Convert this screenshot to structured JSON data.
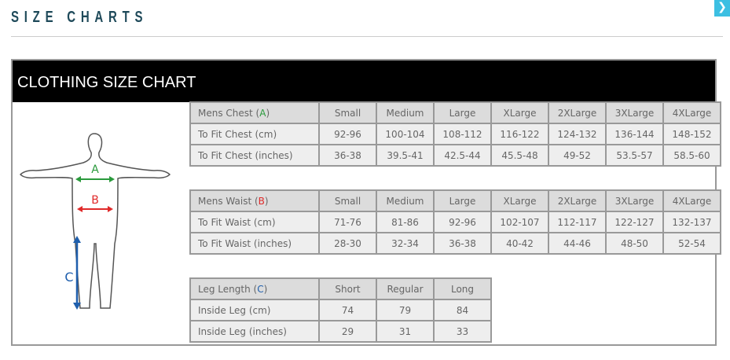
{
  "page": {
    "title": "SIZE CHARTS",
    "close_icon": "chevron-right-icon"
  },
  "chart": {
    "heading": "CLOTHING SIZE CHART",
    "figure": {
      "labels": {
        "A": "A",
        "B": "B",
        "C": "C"
      },
      "colors": {
        "A": "#2a9a3c",
        "B": "#e02a2a",
        "C": "#1f5fad"
      }
    },
    "tables": [
      {
        "header_label": "Mens Chest",
        "marker": "A",
        "columns": [
          "Small",
          "Medium",
          "Large",
          "XLarge",
          "2XLarge",
          "3XLarge",
          "4XLarge"
        ],
        "rows": [
          {
            "label": "To Fit Chest (cm)",
            "values": [
              "92-96",
              "100-104",
              "108-112",
              "116-122",
              "124-132",
              "136-144",
              "148-152"
            ]
          },
          {
            "label": "To Fit Chest (inches)",
            "values": [
              "36-38",
              "39.5-41",
              "42.5-44",
              "45.5-48",
              "49-52",
              "53.5-57",
              "58.5-60"
            ]
          }
        ]
      },
      {
        "header_label": "Mens Waist",
        "marker": "B",
        "columns": [
          "Small",
          "Medium",
          "Large",
          "XLarge",
          "2XLarge",
          "3XLarge",
          "4XLarge"
        ],
        "rows": [
          {
            "label": "To Fit Waist (cm)",
            "values": [
              "71-76",
              "81-86",
              "92-96",
              "102-107",
              "112-117",
              "122-127",
              "132-137"
            ]
          },
          {
            "label": "To Fit Waist (inches)",
            "values": [
              "28-30",
              "32-34",
              "36-38",
              "40-42",
              "44-46",
              "48-50",
              "52-54"
            ]
          }
        ]
      },
      {
        "header_label": "Leg Length",
        "marker": "C",
        "columns": [
          "Short",
          "Regular",
          "Long"
        ],
        "rows": [
          {
            "label": "Inside Leg (cm)",
            "values": [
              "74",
              "79",
              "84"
            ]
          },
          {
            "label": "Inside Leg (inches)",
            "values": [
              "29",
              "31",
              "33"
            ]
          }
        ]
      }
    ]
  }
}
